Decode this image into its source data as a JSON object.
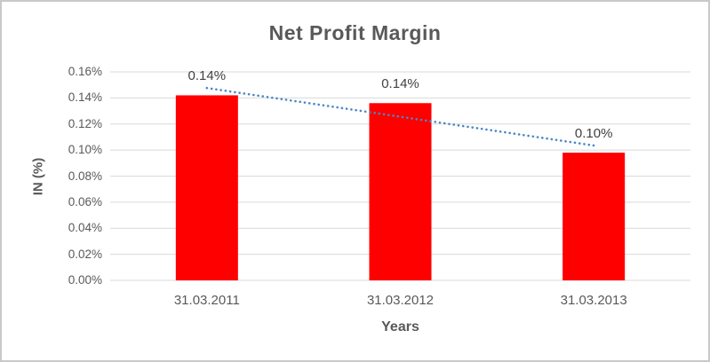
{
  "chart_data": {
    "type": "bar",
    "title": "Net Profit Margin",
    "xlabel": "Years",
    "ylabel": "IN (%)",
    "categories": [
      "31.03.2011",
      "31.03.2012",
      "31.03.2013"
    ],
    "values": [
      0.142,
      0.136,
      0.098
    ],
    "data_labels": [
      "0.14%",
      "0.14%",
      "0.10%"
    ],
    "ylim": [
      0,
      0.16
    ],
    "ytick_step": 0.02,
    "ytick_labels": [
      "0.00%",
      "0.02%",
      "0.04%",
      "0.06%",
      "0.08%",
      "0.10%",
      "0.12%",
      "0.14%",
      "0.16%"
    ],
    "grid": true,
    "legend": "none",
    "bar_color": "#FF0000",
    "trendline": {
      "type": "linear",
      "style": "dotted",
      "color": "#4A86C8",
      "start_value": 0.1476,
      "end_value": 0.1035
    }
  },
  "colors": {
    "title_text": "#595959",
    "axis_text": "#595959",
    "data_label_text": "#404040",
    "gridline": "#D9D9D9",
    "frame_border": "#C9C9C9",
    "background": "#FFFFFF"
  }
}
